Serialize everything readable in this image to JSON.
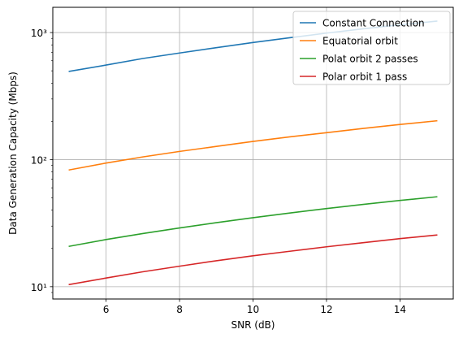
{
  "chart_data": {
    "type": "line",
    "title": "",
    "xlabel": "SNR (dB)",
    "ylabel": "Data Generation Capacity (Mbps)",
    "xlim": [
      4.55,
      15.45
    ],
    "ylim": [
      8.0,
      1580
    ],
    "yscale": "log",
    "grid": true,
    "legend_position": "top-right",
    "x_ticks": [
      6,
      8,
      10,
      12,
      14
    ],
    "x_tick_labels": [
      "6",
      "8",
      "10",
      "12",
      "14"
    ],
    "y_ticks": [
      10,
      100,
      1000
    ],
    "y_tick_labels": [
      "10¹",
      "10²",
      "10³"
    ],
    "x": [
      5,
      6,
      7,
      8,
      9,
      10,
      11,
      12,
      13,
      14,
      15
    ],
    "series": [
      {
        "name": "Constant Connection",
        "color": "#1f77b4",
        "values": [
          495,
          555,
          625,
          690,
          760,
          835,
          910,
          990,
          1070,
          1150,
          1230
        ]
      },
      {
        "name": "Equatorial orbit",
        "color": "#ff7f0e",
        "values": [
          83,
          94,
          105,
          116,
          127,
          139,
          151,
          163,
          176,
          189,
          202
        ]
      },
      {
        "name": "Polat orbit 2 passes",
        "color": "#2ca02c",
        "values": [
          20.8,
          23.5,
          26.2,
          29.0,
          31.9,
          34.9,
          38.0,
          41.2,
          44.4,
          47.7,
          51.0
        ]
      },
      {
        "name": "Polar orbit 1 pass",
        "color": "#d62728",
        "values": [
          10.4,
          11.7,
          13.1,
          14.5,
          16.0,
          17.5,
          19.0,
          20.6,
          22.2,
          23.9,
          25.5
        ]
      }
    ]
  }
}
